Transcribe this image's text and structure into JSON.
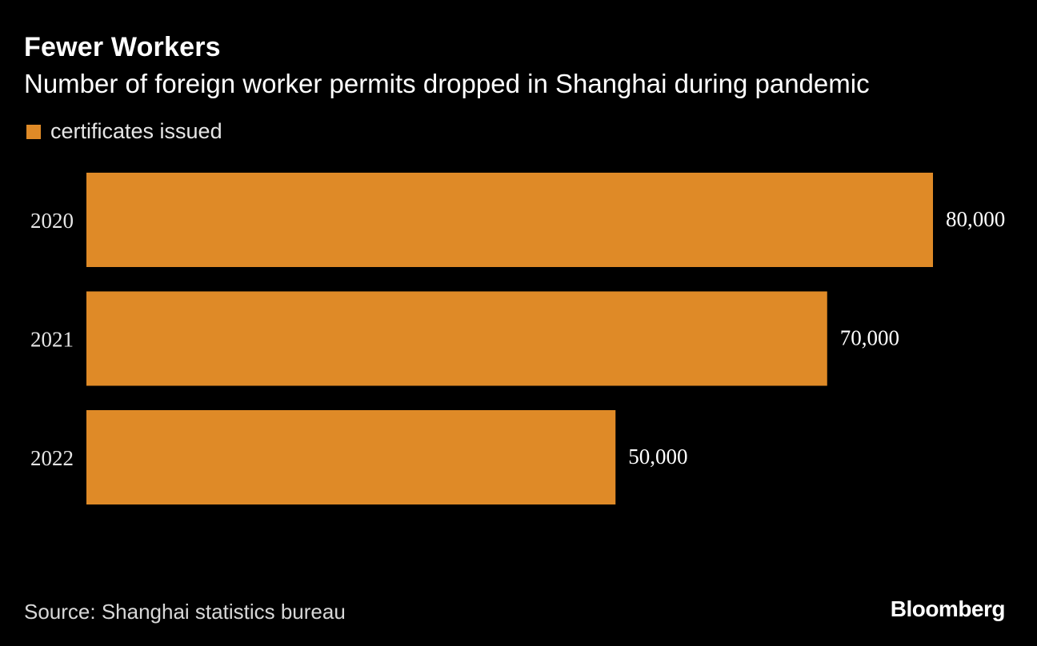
{
  "header": {
    "title": "Fewer Workers",
    "subtitle": "Number of foreign worker permits dropped in Shanghai during pandemic"
  },
  "legend": {
    "label": "certificates issued"
  },
  "colors": {
    "background": "#000000",
    "bar": "#DF8A27",
    "text": "#FFFFFF",
    "muted_text": "#E0E0E0"
  },
  "chart_data": {
    "type": "bar",
    "orientation": "horizontal",
    "categories": [
      "2020",
      "2021",
      "2022"
    ],
    "series": [
      {
        "name": "certificates issued",
        "values": [
          80000,
          70000,
          50000
        ]
      }
    ],
    "data_labels": [
      "80,000",
      "70,000",
      "50,000"
    ],
    "title": "Fewer Workers",
    "subtitle": "Number of foreign worker permits dropped in Shanghai during pandemic",
    "xlim": [
      0,
      80000
    ],
    "grid": false,
    "legend_position": "top-left"
  },
  "footer": {
    "source": "Source: Shanghai statistics bureau",
    "logo": "Bloomberg"
  }
}
